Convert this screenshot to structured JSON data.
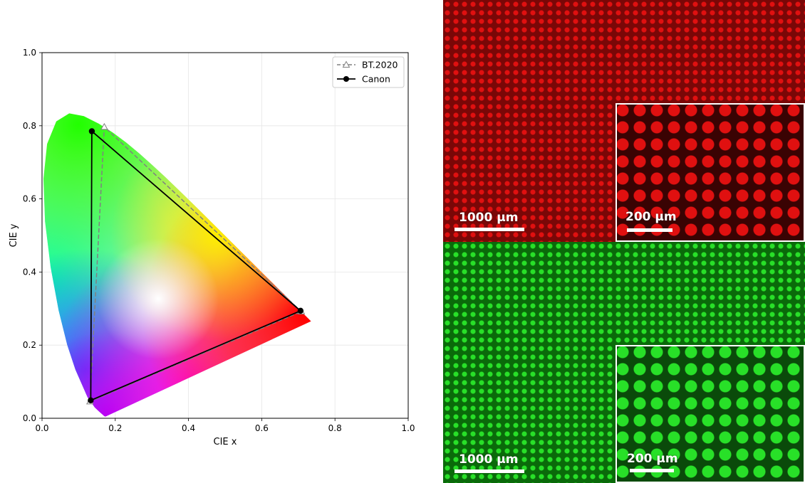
{
  "chart_data": {
    "type": "scatter",
    "xlabel": "CIE x",
    "ylabel": "CIE y",
    "xlim": [
      0.0,
      1.0
    ],
    "ylim": [
      0.0,
      1.0
    ],
    "xticks": [
      "0.0",
      "0.2",
      "0.4",
      "0.6",
      "0.8",
      "1.0"
    ],
    "yticks": [
      "0.0",
      "0.2",
      "0.4",
      "0.6",
      "0.8",
      "1.0"
    ],
    "grid": true,
    "legend_position": "top-right",
    "spectral_locus": [
      [
        0.1741,
        0.005
      ],
      [
        0.1738,
        0.0049
      ],
      [
        0.1733,
        0.0048
      ],
      [
        0.1726,
        0.0048
      ],
      [
        0.1714,
        0.0051
      ],
      [
        0.1689,
        0.0069
      ],
      [
        0.1644,
        0.0109
      ],
      [
        0.1566,
        0.0177
      ],
      [
        0.144,
        0.0297
      ],
      [
        0.1241,
        0.0578
      ],
      [
        0.0913,
        0.1327
      ],
      [
        0.0687,
        0.2007
      ],
      [
        0.0454,
        0.295
      ],
      [
        0.0235,
        0.4127
      ],
      [
        0.0082,
        0.5384
      ],
      [
        0.0039,
        0.6548
      ],
      [
        0.0139,
        0.7502
      ],
      [
        0.0389,
        0.812
      ],
      [
        0.0743,
        0.8338
      ],
      [
        0.1142,
        0.8262
      ],
      [
        0.1547,
        0.8059
      ],
      [
        0.1929,
        0.7816
      ],
      [
        0.2296,
        0.7543
      ],
      [
        0.2658,
        0.7243
      ],
      [
        0.3016,
        0.6923
      ],
      [
        0.3373,
        0.6589
      ],
      [
        0.3731,
        0.6245
      ],
      [
        0.4087,
        0.5896
      ],
      [
        0.4441,
        0.5547
      ],
      [
        0.4788,
        0.5202
      ],
      [
        0.5125,
        0.4866
      ],
      [
        0.5448,
        0.4544
      ],
      [
        0.5752,
        0.4242
      ],
      [
        0.6029,
        0.3965
      ],
      [
        0.627,
        0.3725
      ],
      [
        0.6482,
        0.3514
      ],
      [
        0.6658,
        0.334
      ],
      [
        0.6801,
        0.3197
      ],
      [
        0.6915,
        0.3083
      ],
      [
        0.7006,
        0.2993
      ],
      [
        0.7079,
        0.292
      ],
      [
        0.714,
        0.2859
      ],
      [
        0.719,
        0.2809
      ],
      [
        0.723,
        0.277
      ],
      [
        0.726,
        0.274
      ],
      [
        0.7283,
        0.2717
      ],
      [
        0.73,
        0.27
      ],
      [
        0.732,
        0.268
      ],
      [
        0.7347,
        0.2653
      ]
    ],
    "series": [
      {
        "name": "BT.2020",
        "style": "dashed",
        "marker": "triangle",
        "color": "#808080",
        "x": [
          0.708,
          0.17,
          0.131,
          0.708
        ],
        "y": [
          0.292,
          0.797,
          0.046,
          0.292
        ]
      },
      {
        "name": "Canon",
        "style": "solid",
        "marker": "circle",
        "color": "#000000",
        "x": [
          0.706,
          0.136,
          0.133,
          0.706
        ],
        "y": [
          0.294,
          0.785,
          0.049,
          0.294
        ]
      }
    ]
  },
  "micrographs": {
    "red": {
      "background": "#7a0707",
      "dot_color": "#e01010",
      "main_scale_label": "1000 µm",
      "inset_scale_label": "200 µm"
    },
    "green": {
      "background": "#0a6a0a",
      "dot_color": "#28e028",
      "main_scale_label": "1000 µm",
      "inset_scale_label": "200 µm"
    }
  }
}
